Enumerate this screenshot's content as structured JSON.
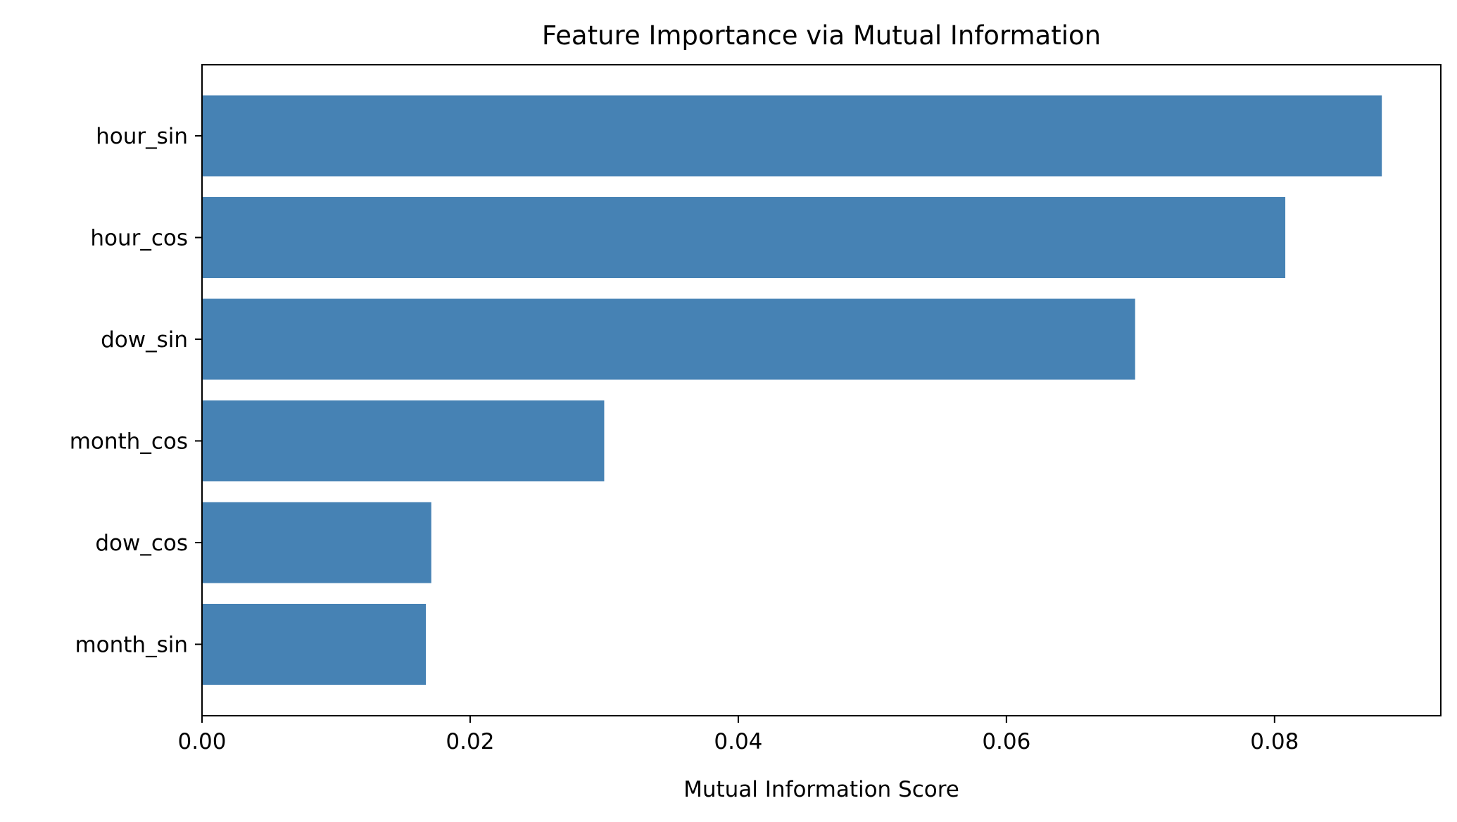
{
  "chart_data": {
    "type": "bar",
    "orientation": "horizontal",
    "title": "Feature Importance via Mutual Information",
    "xlabel": "Mutual Information Score",
    "ylabel": "",
    "categories": [
      "hour_sin",
      "hour_cos",
      "dow_sin",
      "month_cos",
      "dow_cos",
      "month_sin"
    ],
    "values": [
      0.088,
      0.0808,
      0.0696,
      0.03,
      0.0171,
      0.0167
    ],
    "xlim": [
      0,
      0.0924
    ],
    "xticks": [
      0.0,
      0.02,
      0.04,
      0.06,
      0.08
    ],
    "xtick_labels": [
      "0.00",
      "0.02",
      "0.04",
      "0.06",
      "0.08"
    ],
    "bar_color": "#4682b4",
    "grid": false,
    "legend": false
  }
}
